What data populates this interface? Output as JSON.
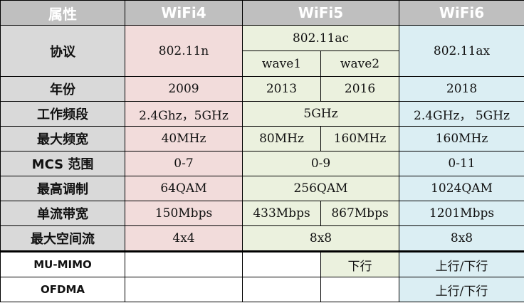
{
  "headers": {
    "attr": "属性",
    "wifi4": "WiFi4",
    "wifi5": "WiFi5",
    "wifi6": "WiFi6"
  },
  "rows": {
    "protocol": {
      "label": "协议",
      "wifi4": "802.11n",
      "wifi5": "802.11ac",
      "wave1": "wave1",
      "wave2": "wave2",
      "wifi6": "802.11ax"
    },
    "year": {
      "label": "年份",
      "wifi4": "2009",
      "wave1": "2013",
      "wave2": "2016",
      "wifi6": "2018"
    },
    "band": {
      "label": "工作频段",
      "wifi4": "2.4Ghz，5GHz",
      "wifi5": "5GHz",
      "wifi6": "2.4GHz， 5GHz"
    },
    "bandwidth": {
      "label": "最大频宽",
      "wifi4": "40MHz",
      "wave1": "80MHz",
      "wave2": "160MHz",
      "wifi6": "160MHz"
    },
    "mcs": {
      "label": "MCS 范围",
      "wifi4": "0-7",
      "wifi5": "0-9",
      "wifi6": "0-11"
    },
    "modulation": {
      "label": "最高调制",
      "wifi4": "64QAM",
      "wifi5": "256QAM",
      "wifi6": "1024QAM"
    },
    "stream_rate": {
      "label": "单流带宽",
      "wifi4": "150Mbps",
      "wave1": "433Mbps",
      "wave2": "867Mbps",
      "wifi6": "1201Mbps"
    },
    "streams": {
      "label": "最大空间流",
      "wifi4": "4x4",
      "wifi5": "8x8",
      "wifi6": "8x8"
    },
    "mumimo": {
      "label": "MU-MIMO",
      "wifi4": "",
      "wave1": "",
      "wave2": "下行",
      "wifi6": "上行/下行"
    },
    "ofdma": {
      "label": "OFDMA",
      "wifi4": "",
      "wave1": "",
      "wave2": "",
      "wifi6": "上行/下行"
    }
  },
  "colors": {
    "header": "#bfbfbf",
    "label": "#d9d9d9",
    "wifi4": "#f2dcdb",
    "wifi5": "#ebf1de",
    "wifi6": "#dbeef3"
  }
}
